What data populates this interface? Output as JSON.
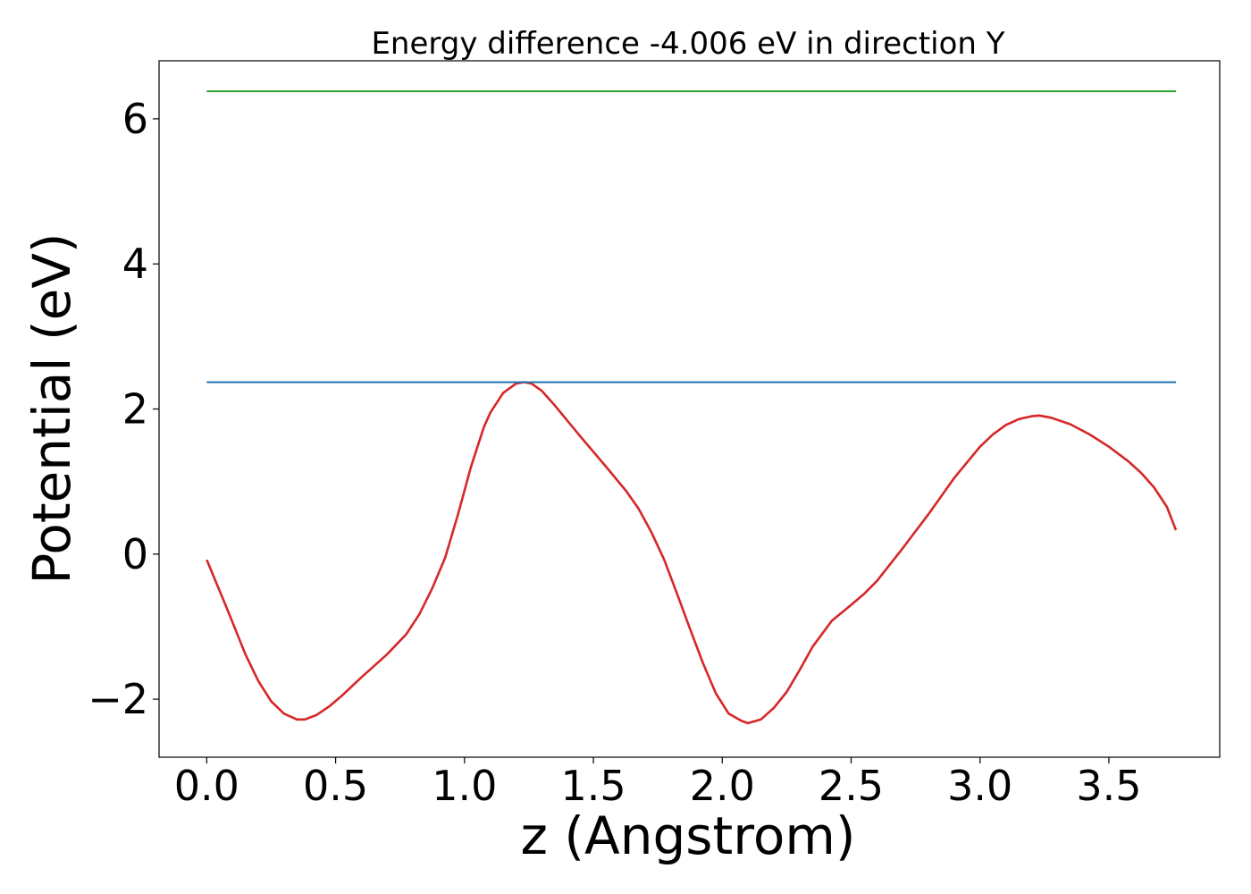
{
  "chart_data": {
    "type": "line",
    "title": "Energy difference -4.006 eV in direction Y",
    "xlabel": "z (Angstrom)",
    "ylabel": "Potential (eV)",
    "xlim": [
      -0.185,
      3.93
    ],
    "ylim": [
      -2.8,
      6.8
    ],
    "xticks": [
      0.0,
      0.5,
      1.0,
      1.5,
      2.0,
      2.5,
      3.0,
      3.5
    ],
    "xtick_labels": [
      "0.0",
      "0.5",
      "1.0",
      "1.5",
      "2.0",
      "2.5",
      "3.0",
      "3.5"
    ],
    "yticks": [
      -2,
      0,
      2,
      4,
      6
    ],
    "ytick_labels": [
      "−2",
      "0",
      "2",
      "4",
      "6"
    ],
    "grid": false,
    "series": [
      {
        "color": "#d62728",
        "x": [
          0.0,
          0.075,
          0.15,
          0.2,
          0.25,
          0.3,
          0.35,
          0.38,
          0.425,
          0.475,
          0.525,
          0.6,
          0.7,
          0.775,
          0.825,
          0.875,
          0.925,
          0.975,
          1.025,
          1.075,
          1.1,
          1.15,
          1.2,
          1.23,
          1.26,
          1.3,
          1.35,
          1.45,
          1.55,
          1.625,
          1.675,
          1.725,
          1.775,
          1.825,
          1.875,
          1.925,
          1.975,
          2.025,
          2.075,
          2.1,
          2.15,
          2.2,
          2.25,
          2.3,
          2.35,
          2.425,
          2.5,
          2.55,
          2.6,
          2.7,
          2.8,
          2.9,
          3.0,
          3.05,
          3.1,
          3.15,
          3.2,
          3.23,
          3.275,
          3.35,
          3.425,
          3.5,
          3.575,
          3.625,
          3.675,
          3.725,
          3.76
        ],
        "y": [
          -0.08,
          -0.72,
          -1.38,
          -1.75,
          -2.03,
          -2.2,
          -2.28,
          -2.28,
          -2.22,
          -2.1,
          -1.95,
          -1.7,
          -1.38,
          -1.1,
          -0.83,
          -0.47,
          -0.05,
          0.55,
          1.2,
          1.75,
          1.95,
          2.22,
          2.35,
          2.37,
          2.35,
          2.25,
          2.05,
          1.62,
          1.2,
          0.88,
          0.63,
          0.3,
          -0.08,
          -0.55,
          -1.03,
          -1.5,
          -1.92,
          -2.2,
          -2.3,
          -2.33,
          -2.28,
          -2.12,
          -1.9,
          -1.6,
          -1.28,
          -0.92,
          -0.7,
          -0.55,
          -0.37,
          0.08,
          0.55,
          1.05,
          1.48,
          1.65,
          1.78,
          1.86,
          1.9,
          1.91,
          1.88,
          1.79,
          1.65,
          1.48,
          1.28,
          1.12,
          0.92,
          0.65,
          0.33
        ]
      },
      {
        "color": "#1f77b4",
        "x": [
          0.0,
          3.76
        ],
        "y": [
          2.37,
          2.37
        ]
      },
      {
        "color": "#2ca02c",
        "x": [
          0.0,
          3.76
        ],
        "y": [
          6.38,
          6.38
        ]
      }
    ]
  }
}
